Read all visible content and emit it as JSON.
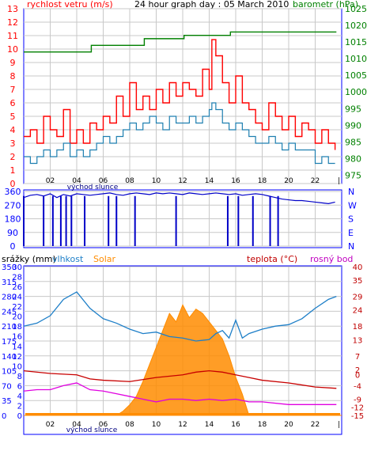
{
  "header": {
    "wind_label": "rychlost vetru (m/s)",
    "title": "24 hour graph day : 05 March 2010",
    "baro_label": "barometr (hPa)"
  },
  "bottom_header": {
    "rain_label": "srážky (mm)",
    "humidity_label": "vlhkost",
    "solar_label": "Solar",
    "temp_label": "teplota (°C)",
    "dew_label": "rosný bod"
  },
  "x_axis": {
    "ticks": [
      "02",
      "04",
      "06",
      "08",
      "10",
      "12",
      "14",
      "16",
      "18",
      "20",
      "22"
    ],
    "sunrise_label": "východ slunce",
    "end_mark": "|"
  },
  "colors": {
    "frame": "#0000ff",
    "grid": "#c8c8c8",
    "wind_gust": "#ff0000",
    "wind_avg": "#1e7fb0",
    "barometer": "#008000",
    "direction": "#0000c8",
    "humidity": "#1e7fc8",
    "solar": "#ff8c00",
    "temperature": "#c80000",
    "dewpoint": "#e000e0",
    "rain": "#ff8c00",
    "left_axis_text": "#ff0000",
    "right_axis_text": "#008000",
    "blue_text": "#0000ff",
    "dark_red_text": "#c00000",
    "magenta_text": "#c000c0"
  },
  "chart_data": [
    {
      "type": "line",
      "name": "wind-and-pressure",
      "x_unit": "hour",
      "xlim": [
        0,
        24
      ],
      "y_left": {
        "label": "rychlost vetru (m/s)",
        "ticks": [
          "0",
          "1",
          "2",
          "3",
          "4",
          "5",
          "6",
          "7",
          "8",
          "9",
          "10",
          "11",
          "12",
          "13"
        ],
        "ylim": [
          0,
          13
        ]
      },
      "y_right": {
        "label": "barometr (hPa)",
        "ticks": [
          "975",
          "980",
          "985",
          "990",
          "995",
          "1000",
          "1005",
          "1010",
          "1015",
          "1020",
          "1025"
        ],
        "ylim": [
          972.5,
          1025
        ]
      },
      "grid": true,
      "series": [
        {
          "name": "gust",
          "axis": "left",
          "x": [
            0,
            0.5,
            1,
            1.5,
            2,
            2.5,
            3,
            3.5,
            4,
            4.5,
            5,
            5.5,
            6,
            6.5,
            7,
            7.5,
            8,
            8.5,
            9,
            9.5,
            10,
            10.5,
            11,
            11.5,
            12,
            12.5,
            13,
            13.5,
            14,
            14.2,
            14.5,
            15,
            15.5,
            16,
            16.5,
            17,
            17.5,
            18,
            18.5,
            19,
            19.5,
            20,
            20.5,
            21,
            21.5,
            22,
            22.5,
            23,
            23.5
          ],
          "y": [
            3.5,
            4,
            3,
            5,
            4,
            3.5,
            5.5,
            3,
            4,
            3,
            4.5,
            4,
            5,
            4.5,
            6.5,
            5,
            7.5,
            5.5,
            6.5,
            5.5,
            7,
            6,
            7.5,
            6.5,
            7.5,
            7,
            6.5,
            8.5,
            7,
            10.7,
            9.5,
            7.5,
            6,
            8,
            6,
            5.5,
            4.5,
            4,
            6,
            5,
            4,
            5,
            3.5,
            4.5,
            4,
            3,
            4,
            3,
            2.5
          ]
        },
        {
          "name": "average",
          "axis": "left",
          "x": [
            0,
            0.5,
            1,
            1.5,
            2,
            2.5,
            3,
            3.5,
            4,
            4.5,
            5,
            5.5,
            6,
            6.5,
            7,
            7.5,
            8,
            8.5,
            9,
            9.5,
            10,
            10.5,
            11,
            11.5,
            12,
            12.5,
            13,
            13.5,
            14,
            14.2,
            14.5,
            15,
            15.5,
            16,
            16.5,
            17,
            17.5,
            18,
            18.5,
            19,
            19.5,
            20,
            20.5,
            21,
            21.5,
            22,
            22.5,
            23,
            23.5
          ],
          "y": [
            2,
            1.5,
            2,
            2.5,
            2,
            2.5,
            3,
            2,
            2.5,
            2,
            2.5,
            3,
            3.5,
            3,
            3.5,
            4,
            4.5,
            4,
            4.5,
            5,
            4.5,
            4,
            5,
            4.5,
            4.5,
            5,
            4.5,
            5,
            5.5,
            6,
            5.5,
            4.5,
            4,
            4.5,
            4,
            3.5,
            3,
            3,
            3.5,
            3,
            2.5,
            3,
            2.5,
            2.5,
            2.5,
            1.5,
            2,
            1.5,
            1.5
          ]
        },
        {
          "name": "pressure",
          "axis": "right",
          "x": [
            0,
            5,
            5.1,
            9,
            9.1,
            12,
            12.1,
            15.5,
            15.6,
            23.6
          ],
          "y": [
            1012,
            1012,
            1014,
            1014,
            1016,
            1016,
            1017,
            1017,
            1018,
            1018
          ]
        }
      ]
    },
    {
      "type": "scatter",
      "name": "wind-direction",
      "x_unit": "hour",
      "xlim": [
        0,
        24
      ],
      "y_left": {
        "ticks": [
          "0",
          "90",
          "180",
          "270",
          "360"
        ],
        "ylim": [
          0,
          360
        ]
      },
      "y_right": {
        "ticks": [
          "N",
          "E",
          "S",
          "W",
          "N"
        ],
        "ylim": [
          0,
          360
        ]
      },
      "grid": true,
      "series": [
        {
          "name": "direction",
          "x": [
            0,
            0.5,
            1,
            1.5,
            2,
            2.5,
            3,
            3.5,
            4,
            4.5,
            5,
            5.5,
            6,
            6.5,
            7,
            7.5,
            8,
            8.5,
            9,
            9.5,
            10,
            10.5,
            11,
            11.5,
            12,
            12.5,
            13,
            13.5,
            14,
            14.5,
            15,
            15.5,
            16,
            16.5,
            17,
            17.5,
            18,
            18.5,
            19,
            19.5,
            20,
            20.5,
            21,
            21.5,
            22,
            22.5,
            23,
            23.5
          ],
          "y": [
            320,
            335,
            340,
            330,
            345,
            320,
            340,
            330,
            345,
            340,
            335,
            340,
            345,
            350,
            340,
            335,
            345,
            350,
            345,
            340,
            350,
            345,
            350,
            345,
            340,
            350,
            345,
            340,
            345,
            350,
            345,
            340,
            345,
            335,
            340,
            345,
            340,
            330,
            320,
            310,
            305,
            300,
            300,
            295,
            290,
            285,
            280,
            290
          ],
          "drops_to_zero_at": [
            0,
            1.5,
            2.2,
            2.8,
            3.2,
            3.6,
            4.6,
            6.4,
            7.0,
            8.4,
            11.5,
            15.4,
            16.2,
            17.3,
            18.6,
            19.2
          ]
        }
      ]
    },
    {
      "type": "line",
      "name": "rain-humidity-solar-temperature",
      "x_unit": "hour",
      "xlim": [
        0,
        24
      ],
      "y_left_rain": {
        "label": "srážky (mm)",
        "ticks": [
          "0",
          "2",
          "4",
          "6",
          "8",
          "10",
          "12",
          "14",
          "16",
          "18",
          "20",
          "22",
          "24",
          "26",
          "28",
          "30"
        ],
        "ylim": [
          0,
          30
        ]
      },
      "y_left_humidity": {
        "label": "vlhkost",
        "ticks": [
          "0",
          "10",
          "20",
          "30",
          "40",
          "50",
          "60",
          "70",
          "80",
          "90",
          "100"
        ],
        "ylim": [
          0,
          100
        ]
      },
      "y_left_solar": {
        "label": "Solar",
        "ticks": [
          "0",
          "35",
          "70",
          "105",
          "140",
          "175",
          "210",
          "245",
          "280",
          "315",
          "350"
        ],
        "ylim": [
          0,
          350
        ]
      },
      "y_right": {
        "label": "teplota (°C)",
        "ticks": [
          "-15",
          "-12",
          "-9",
          "-4",
          "0",
          "2",
          "7",
          "13",
          "18",
          "24",
          "29",
          "35",
          "40"
        ],
        "ylim": [
          -15,
          40
        ]
      },
      "grid": true,
      "series": [
        {
          "name": "humidity",
          "axis": "humidity",
          "x": [
            0,
            1,
            2,
            3,
            4,
            5,
            6,
            7,
            8,
            9,
            10,
            11,
            12,
            13,
            14,
            14.5,
            15,
            15.5,
            16,
            16.5,
            17,
            18,
            19,
            20,
            21,
            22,
            23,
            23.6
          ],
          "y": [
            60,
            62,
            67,
            78,
            83,
            72,
            65,
            62,
            58,
            55,
            56,
            53,
            52,
            50,
            51,
            55,
            57,
            52,
            64,
            52,
            55,
            58,
            60,
            61,
            65,
            72,
            78,
            80
          ]
        },
        {
          "name": "solar",
          "axis": "solar",
          "x": [
            0,
            7,
            7.5,
            8,
            8.5,
            9,
            9.5,
            10,
            10.5,
            11,
            11.5,
            12,
            12.5,
            13,
            13.5,
            14,
            14.5,
            15,
            15.5,
            16,
            16.5,
            17,
            24
          ],
          "y": [
            0,
            0,
            10,
            25,
            45,
            80,
            120,
            160,
            200,
            240,
            220,
            260,
            230,
            250,
            240,
            220,
            200,
            180,
            140,
            90,
            50,
            0,
            0
          ]
        },
        {
          "name": "temperature",
          "axis": "right",
          "x": [
            0,
            2,
            4,
            5,
            6,
            8,
            10,
            12,
            13,
            14,
            15,
            16,
            17,
            18,
            20,
            22,
            23.6
          ],
          "y": [
            1.5,
            0.5,
            0,
            -1.5,
            -2,
            -2.5,
            -1,
            0,
            1,
            1.5,
            1,
            0,
            -1,
            -2,
            -3,
            -4.5,
            -5
          ]
        },
        {
          "name": "dewpoint",
          "axis": "right",
          "x": [
            0,
            1,
            2,
            3,
            4,
            5,
            6,
            7,
            8,
            9,
            10,
            11,
            12,
            13,
            14,
            15,
            16,
            17,
            18,
            20,
            22,
            23.6
          ],
          "y": [
            -6,
            -5.5,
            -5.5,
            -4,
            -3,
            -5.5,
            -6,
            -7,
            -8,
            -9,
            -10,
            -9,
            -9,
            -9.5,
            -9,
            -9.5,
            -9,
            -10,
            -10,
            -11,
            -11,
            -11
          ]
        },
        {
          "name": "rain",
          "axis": "rain",
          "x": [
            0,
            24
          ],
          "y": [
            0,
            0
          ]
        }
      ]
    }
  ]
}
